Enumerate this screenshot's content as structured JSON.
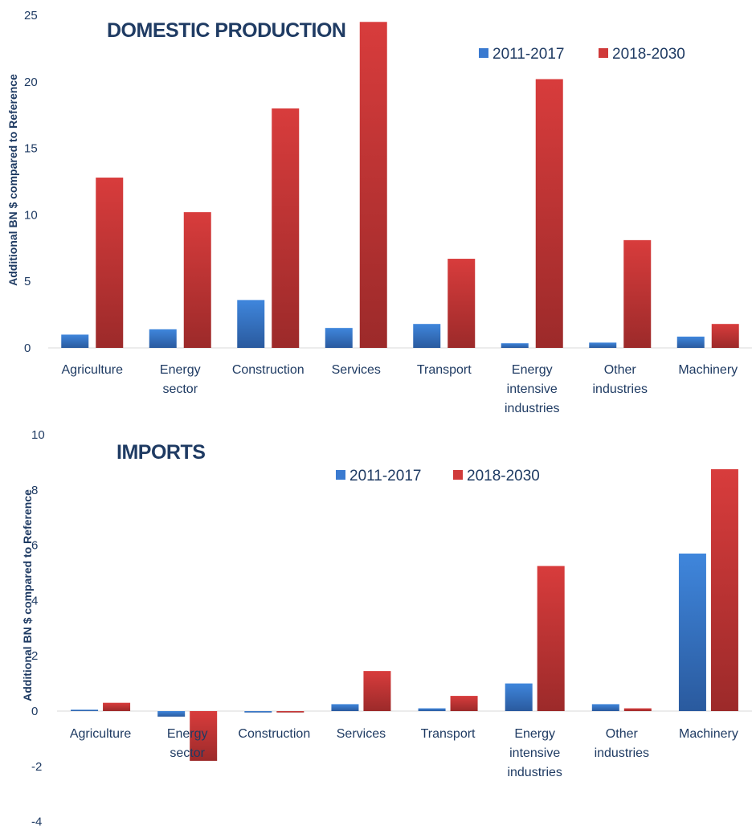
{
  "colors": {
    "series_1": "#3a7ad0",
    "series_2": "#d03a3a",
    "text": "#1f3b63"
  },
  "chart_data": [
    {
      "type": "bar",
      "title": "DOMESTIC PRODUCTION",
      "ylabel": "Additional BN $  compared to Reference",
      "ylim": [
        0,
        25
      ],
      "yticks": [
        0,
        5,
        10,
        15,
        20,
        25
      ],
      "categories": [
        "Agriculture",
        "Energy sector",
        "Construction",
        "Services",
        "Transport",
        "Energy intensive industries",
        "Other industries",
        "Machinery"
      ],
      "series": [
        {
          "name": "2011-2017",
          "values": [
            1.0,
            1.4,
            3.6,
            1.5,
            1.8,
            0.35,
            0.4,
            0.85
          ]
        },
        {
          "name": "2018-2030",
          "values": [
            12.8,
            10.2,
            18.0,
            24.5,
            6.7,
            20.2,
            8.1,
            1.8
          ]
        }
      ],
      "legend_position": "top-right",
      "grid": false
    },
    {
      "type": "bar",
      "title": "IMPORTS",
      "ylabel": "Additional BN $  compared to Reference",
      "ylim": [
        -4,
        10
      ],
      "yticks": [
        -4,
        -2,
        0,
        2,
        4,
        6,
        8,
        10
      ],
      "categories": [
        "Agriculture",
        "Energy sector",
        "Construction",
        "Services",
        "Transport",
        "Energy intensive industries",
        "Other industries",
        "Machinery"
      ],
      "series": [
        {
          "name": "2011-2017",
          "values": [
            0.05,
            -0.2,
            -0.05,
            0.25,
            0.1,
            1.0,
            0.25,
            5.7
          ]
        },
        {
          "name": "2018-2030",
          "values": [
            0.3,
            -1.8,
            -0.05,
            1.45,
            0.55,
            5.25,
            0.1,
            8.75
          ]
        }
      ],
      "legend_position": "top-center",
      "grid": false
    }
  ]
}
